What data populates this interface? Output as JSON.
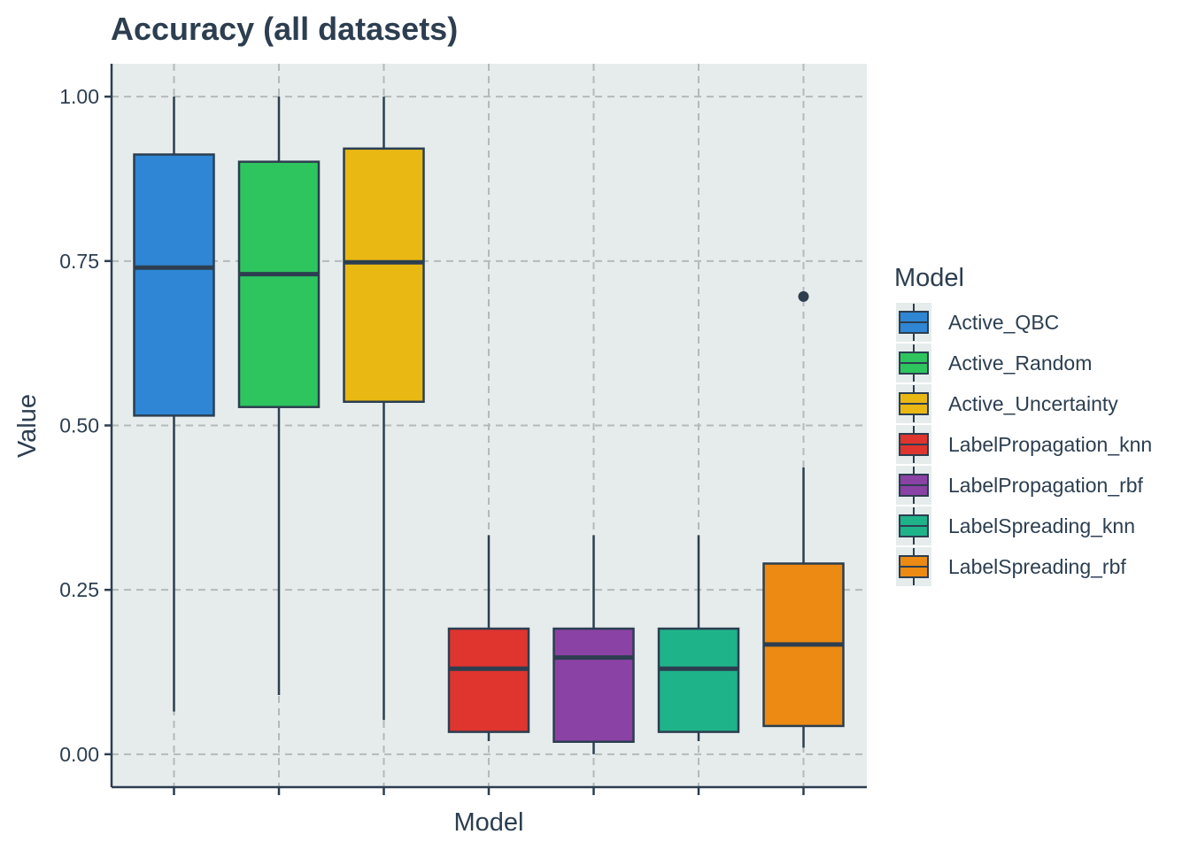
{
  "chart_data": {
    "type": "box",
    "title": "Accuracy (all datasets)",
    "xlabel": "Model",
    "ylabel": "Value",
    "ylim": [
      -0.05,
      1.05
    ],
    "yticks": [
      0.0,
      0.25,
      0.5,
      0.75,
      1.0
    ],
    "ytick_labels": [
      "0.00",
      "0.25",
      "0.50",
      "0.75",
      "1.00"
    ],
    "x_tick_labels_shown": false,
    "grid": true,
    "legend": {
      "title": "Model",
      "position": "right"
    },
    "series": [
      {
        "name": "Active_QBC",
        "color": "#2e86d4",
        "whisker_low": 0.065,
        "q1": 0.515,
        "median": 0.74,
        "q3": 0.912,
        "whisker_high": 1.0,
        "outliers": []
      },
      {
        "name": "Active_Random",
        "color": "#2ec55e",
        "whisker_low": 0.09,
        "q1": 0.528,
        "median": 0.73,
        "q3": 0.901,
        "whisker_high": 1.0,
        "outliers": []
      },
      {
        "name": "Active_Uncertainty",
        "color": "#eab813",
        "whisker_low": 0.052,
        "q1": 0.536,
        "median": 0.748,
        "q3": 0.921,
        "whisker_high": 1.0,
        "outliers": []
      },
      {
        "name": "LabelPropagation_knn",
        "color": "#e0342f",
        "whisker_low": 0.02,
        "q1": 0.034,
        "median": 0.13,
        "q3": 0.191,
        "whisker_high": 0.333,
        "outliers": []
      },
      {
        "name": "LabelPropagation_rbf",
        "color": "#8b42a5",
        "whisker_low": 0.0,
        "q1": 0.019,
        "median": 0.147,
        "q3": 0.191,
        "whisker_high": 0.333,
        "outliers": []
      },
      {
        "name": "LabelSpreading_knn",
        "color": "#1fb38a",
        "whisker_low": 0.02,
        "q1": 0.034,
        "median": 0.13,
        "q3": 0.191,
        "whisker_high": 0.333,
        "outliers": []
      },
      {
        "name": "LabelSpreading_rbf",
        "color": "#ec8a13",
        "whisker_low": 0.01,
        "q1": 0.043,
        "median": 0.167,
        "q3": 0.29,
        "whisker_high": 0.436,
        "outliers": [
          0.696
        ]
      }
    ]
  },
  "colors": {
    "panel_background": "#e6ecec",
    "grid": "#b4b9b9",
    "ink": "#2c3e50"
  }
}
